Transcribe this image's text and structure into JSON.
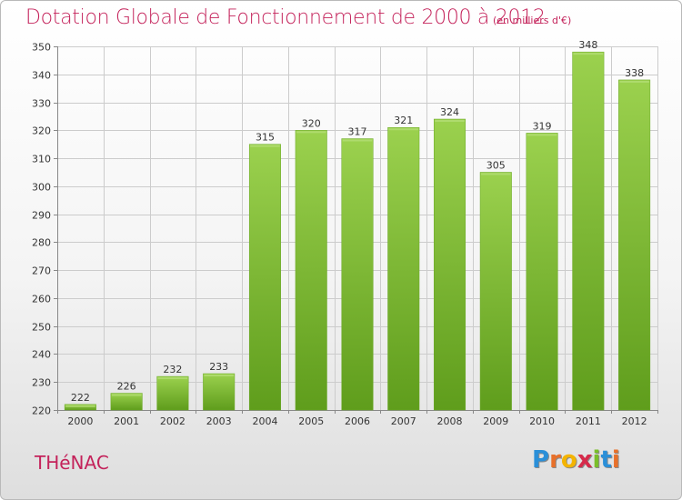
{
  "chart_data": {
    "type": "bar",
    "title": "Dotation Globale de Fonctionnement de 2000 à 2012",
    "subtitle": "(en milliers d'€)",
    "xlabel": "",
    "ylabel": "",
    "categories": [
      "2000",
      "2001",
      "2002",
      "2003",
      "2004",
      "2005",
      "2006",
      "2007",
      "2008",
      "2009",
      "2010",
      "2011",
      "2012"
    ],
    "values": [
      222,
      226,
      232,
      233,
      315,
      320,
      317,
      321,
      324,
      305,
      319,
      348,
      338
    ],
    "ylim": [
      220,
      350
    ],
    "yticks": [
      220,
      230,
      240,
      250,
      260,
      270,
      280,
      290,
      300,
      310,
      320,
      330,
      340,
      350
    ],
    "grid": true,
    "bar_color": "#7fc233",
    "bar_color_dark": "#5a9918"
  },
  "footer": {
    "place": "THéNAC",
    "logo": [
      "P",
      "r",
      "o",
      "x",
      "i",
      "t",
      "i"
    ],
    "logo_colors": [
      "#2a8fd8",
      "#e8702a",
      "#f4b400",
      "#d62a4a",
      "#7abf2a",
      "#2a8fd8",
      "#e8702a"
    ]
  },
  "colors": {
    "accent": "#c4235b",
    "grid": "#cccccc"
  }
}
